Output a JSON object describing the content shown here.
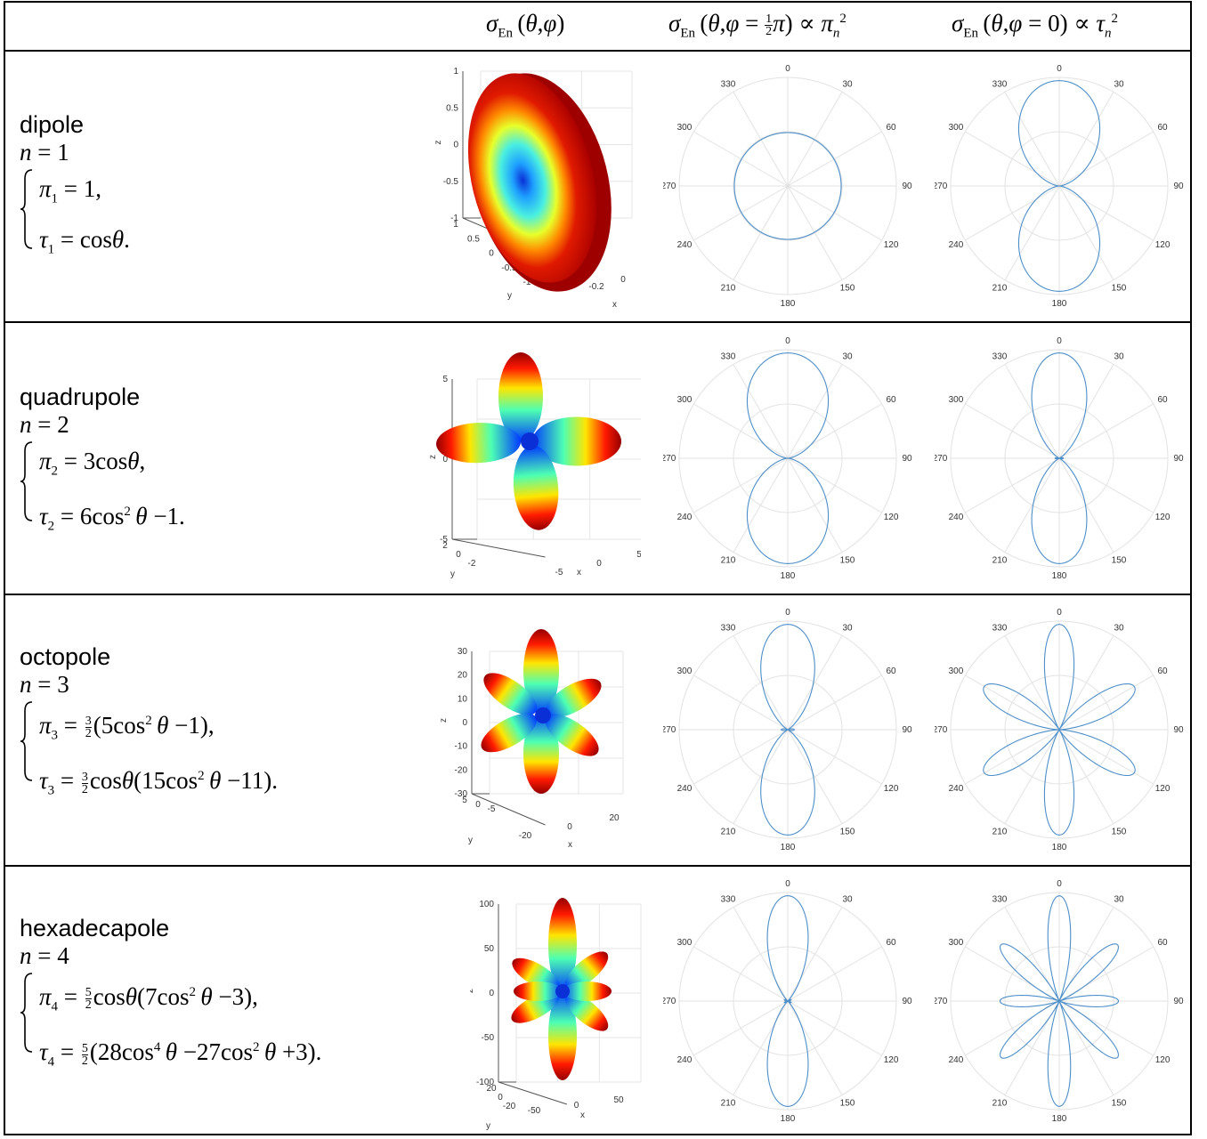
{
  "header": {
    "col2": "σEn (θ,φ)",
    "col3": "σEn (θ,φ = ½π) ∝ πn²",
    "col4": "σEn (θ,φ = 0) ∝ τn²"
  },
  "rows": [
    {
      "name": "dipole",
      "n_label": "n = 1",
      "pi_eq": "π1 = 1,",
      "tau_eq": "τ1 = cosθ.",
      "n": 1
    },
    {
      "name": "quadrupole",
      "n_label": "n = 2",
      "pi_eq": "π2 = 3cosθ,",
      "tau_eq": "τ2 = 6cos²θ −1.",
      "n": 2
    },
    {
      "name": "octopole",
      "n_label": "n = 3",
      "pi_eq": "π3 = 3/2(5cos²θ −1),",
      "tau_eq": "τ3 = 3/2 cosθ(15cos²θ −11).",
      "n": 3
    },
    {
      "name": "hexadecapole",
      "n_label": "n = 4",
      "pi_eq": "π4 = 5/2 cosθ(7cos²θ −3),",
      "tau_eq": "τ4 = 5/2(28cos⁴θ −27cos²θ +3).",
      "n": 4
    }
  ],
  "polar_angle_labels": [
    "0",
    "30",
    "60",
    "90",
    "120",
    "150",
    "180",
    "210",
    "240",
    "270",
    "300",
    "330"
  ],
  "plot3d_axes": [
    {
      "z_ticks": [
        "1",
        "0.5",
        "0",
        "-0.5",
        "-1"
      ],
      "y_ticks": [
        "1",
        "0.5",
        "0",
        "-0.5",
        "-1"
      ],
      "x_ticks": [
        "-0.2",
        "0",
        "0.2"
      ],
      "labels": {
        "x": "x",
        "y": "y",
        "z": "z"
      }
    },
    {
      "z_ticks": [
        "5",
        "0",
        "-5"
      ],
      "y_ticks": [
        "2",
        "0",
        "-2"
      ],
      "x_ticks": [
        "-5",
        "0",
        "5"
      ],
      "labels": {
        "x": "x",
        "y": "y",
        "z": "z"
      }
    },
    {
      "z_ticks": [
        "30",
        "20",
        "10",
        "0",
        "-10",
        "-20",
        "-30"
      ],
      "y_ticks": [
        "5",
        "0",
        "-5"
      ],
      "x_ticks": [
        "-20",
        "0",
        "20"
      ],
      "labels": {
        "x": "x",
        "y": "y",
        "z": "z"
      }
    },
    {
      "z_ticks": [
        "100",
        "50",
        "0",
        "-50",
        "-100"
      ],
      "y_ticks": [
        "20",
        "0",
        "-20"
      ],
      "x_ticks": [
        "-50",
        "0",
        "50"
      ],
      "labels": {
        "x": "x",
        "y": "y",
        "z": "z"
      }
    }
  ],
  "colors": {
    "curve": "#4d8fc9",
    "grid": "#e2e2e2",
    "hot": "#c40000",
    "cold": "#0a2fd6"
  }
}
